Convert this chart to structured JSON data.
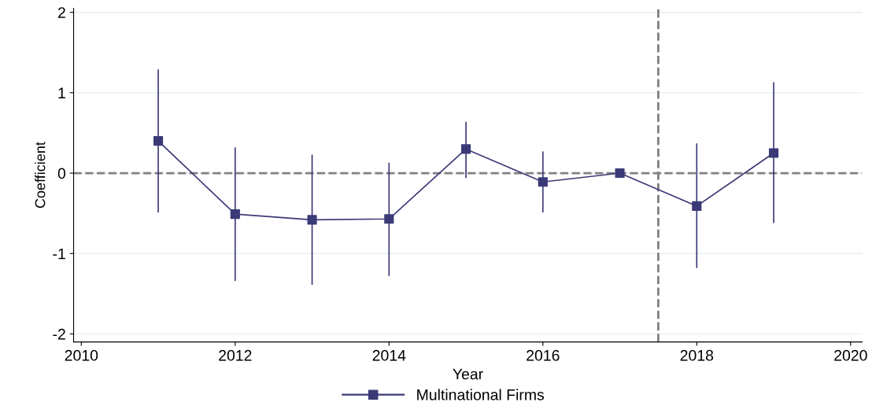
{
  "chart_data": {
    "type": "line",
    "xlabel": "Year",
    "ylabel": "Coefficient",
    "x": [
      2011,
      2012,
      2013,
      2014,
      2015,
      2016,
      2017,
      2018,
      2019
    ],
    "series": [
      {
        "name": "Multinational Firms",
        "color": "#3b3a77",
        "values": [
          0.4,
          -0.51,
          -0.58,
          -0.57,
          0.3,
          -0.11,
          0,
          -0.41,
          0.25
        ],
        "errors": [
          [
            -0.49,
            1.29
          ],
          [
            -1.34,
            0.32
          ],
          [
            -1.39,
            0.23
          ],
          [
            -1.28,
            0.13
          ],
          [
            -0.06,
            0.64
          ],
          [
            -0.49,
            0.27
          ],
          null,
          [
            -1.18,
            0.37
          ],
          [
            -0.62,
            1.13
          ]
        ]
      }
    ],
    "xlim": [
      2009.9,
      2020.15
    ],
    "xticks": [
      2010,
      2012,
      2014,
      2016,
      2018,
      2020
    ],
    "ylim": [
      -2.1,
      2.05
    ],
    "yticks": [
      -2,
      -1,
      0,
      1,
      2
    ],
    "ref_lines": [
      {
        "axis": "y",
        "value": 0,
        "color": "#808080",
        "line_style": "dashed"
      },
      {
        "axis": "x",
        "value": 2017.5,
        "color": "#808080",
        "line_style": "dashed"
      }
    ],
    "grid": "y",
    "legend": "bottom",
    "marker": "square",
    "line_style": "solid"
  }
}
